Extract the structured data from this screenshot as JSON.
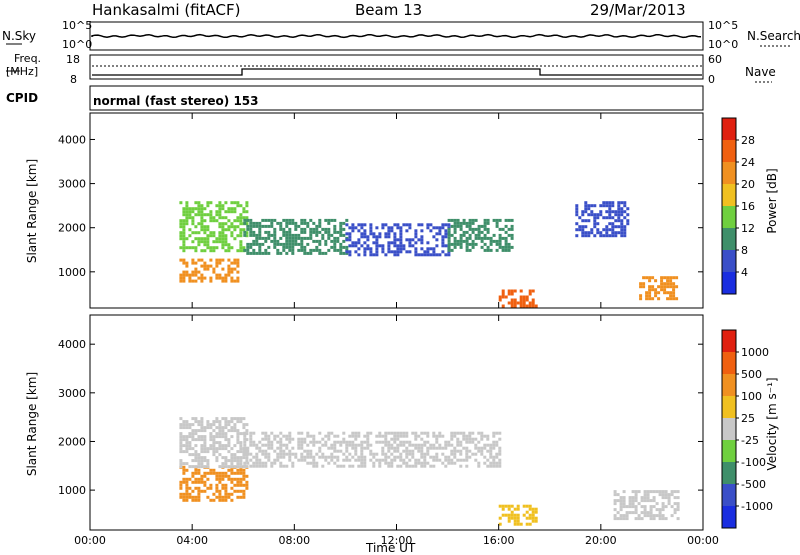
{
  "header": {
    "station": "Hankasalmi (fitACF)",
    "beam": "Beam 13",
    "date": "29/Mar/2013"
  },
  "top_panels": {
    "nsky_label": "N.Sky",
    "nsearch_label": "N.Search",
    "log_ticks_left": [
      "10^5",
      "10^0"
    ],
    "log_ticks_right": [
      "10^5",
      "10^0"
    ],
    "freq_label_line1": "Freq.",
    "freq_label_line2": "[MHz]",
    "freq_ticks": [
      "18",
      "8"
    ],
    "nave_label": "Nave",
    "nave_ticks": [
      "60",
      "0"
    ],
    "cpid_label": "CPID",
    "cpid_value": "normal (fast stereo) 153"
  },
  "chart_data": [
    {
      "type": "heatmap",
      "ylabel": "Slant Range [km]",
      "xlabel": "",
      "x_ticks": [
        "00:00",
        "04:00",
        "08:00",
        "12:00",
        "16:00",
        "20:00",
        "00:00"
      ],
      "y_ticks": [
        1000,
        2000,
        3000,
        4000
      ],
      "ylim": [
        180,
        4600
      ],
      "xlim_hours": [
        0,
        24
      ],
      "colorbar": {
        "label": "Power [dB]",
        "ticks": [
          "4",
          "8",
          "12",
          "16",
          "20",
          "24",
          "28"
        ],
        "colors": [
          "#1a2ee0",
          "#3a4fc8",
          "#3f8f6a",
          "#6fcf3f",
          "#f0c020",
          "#f09020",
          "#f06010",
          "#e02010"
        ]
      },
      "regions": [
        {
          "t0": 3.5,
          "t1": 6.2,
          "r0": 1500,
          "r1": 2600,
          "level": 3
        },
        {
          "t0": 3.5,
          "t1": 5.8,
          "r0": 800,
          "r1": 1300,
          "level": 5
        },
        {
          "t0": 6.0,
          "t1": 10.0,
          "r0": 1400,
          "r1": 2200,
          "level": 2
        },
        {
          "t0": 10.0,
          "t1": 14.0,
          "r0": 1400,
          "r1": 2100,
          "level": 1
        },
        {
          "t0": 14.0,
          "t1": 16.5,
          "r0": 1500,
          "r1": 2200,
          "level": 2
        },
        {
          "t0": 16.0,
          "t1": 17.5,
          "r0": 250,
          "r1": 600,
          "level": 6
        },
        {
          "t0": 19.0,
          "t1": 21.0,
          "r0": 1800,
          "r1": 2600,
          "level": 1
        },
        {
          "t0": 21.5,
          "t1": 23.0,
          "r0": 400,
          "r1": 900,
          "level": 5
        }
      ]
    },
    {
      "type": "heatmap",
      "ylabel": "Slant Range [km]",
      "xlabel": "Time UT",
      "x_ticks": [
        "00:00",
        "04:00",
        "08:00",
        "12:00",
        "16:00",
        "20:00",
        "00:00"
      ],
      "y_ticks": [
        1000,
        2000,
        3000,
        4000
      ],
      "ylim": [
        180,
        4600
      ],
      "xlim_hours": [
        0,
        24
      ],
      "colorbar": {
        "label": "Velocity [m s⁻¹]",
        "ticks": [
          "1000",
          "500",
          "100",
          "25",
          "-25",
          "-100",
          "-500",
          "-1000"
        ],
        "colors": [
          "#1a2ee0",
          "#3a4fc8",
          "#3f8f6a",
          "#6fcf3f",
          "#c8c8c8",
          "#f0c020",
          "#f09020",
          "#f06010",
          "#e02010"
        ]
      },
      "regions": [
        {
          "t0": 3.5,
          "t1": 6.2,
          "r0": 800,
          "r1": 1500,
          "level": 6
        },
        {
          "t0": 3.5,
          "t1": 6.2,
          "r0": 1500,
          "r1": 2500,
          "level": 4
        },
        {
          "t0": 6.0,
          "t1": 16.0,
          "r0": 1500,
          "r1": 2200,
          "level": 4
        },
        {
          "t0": 16.0,
          "t1": 17.5,
          "r0": 300,
          "r1": 700,
          "level": 5
        },
        {
          "t0": 20.5,
          "t1": 23.0,
          "r0": 400,
          "r1": 1000,
          "level": 4
        }
      ]
    }
  ]
}
